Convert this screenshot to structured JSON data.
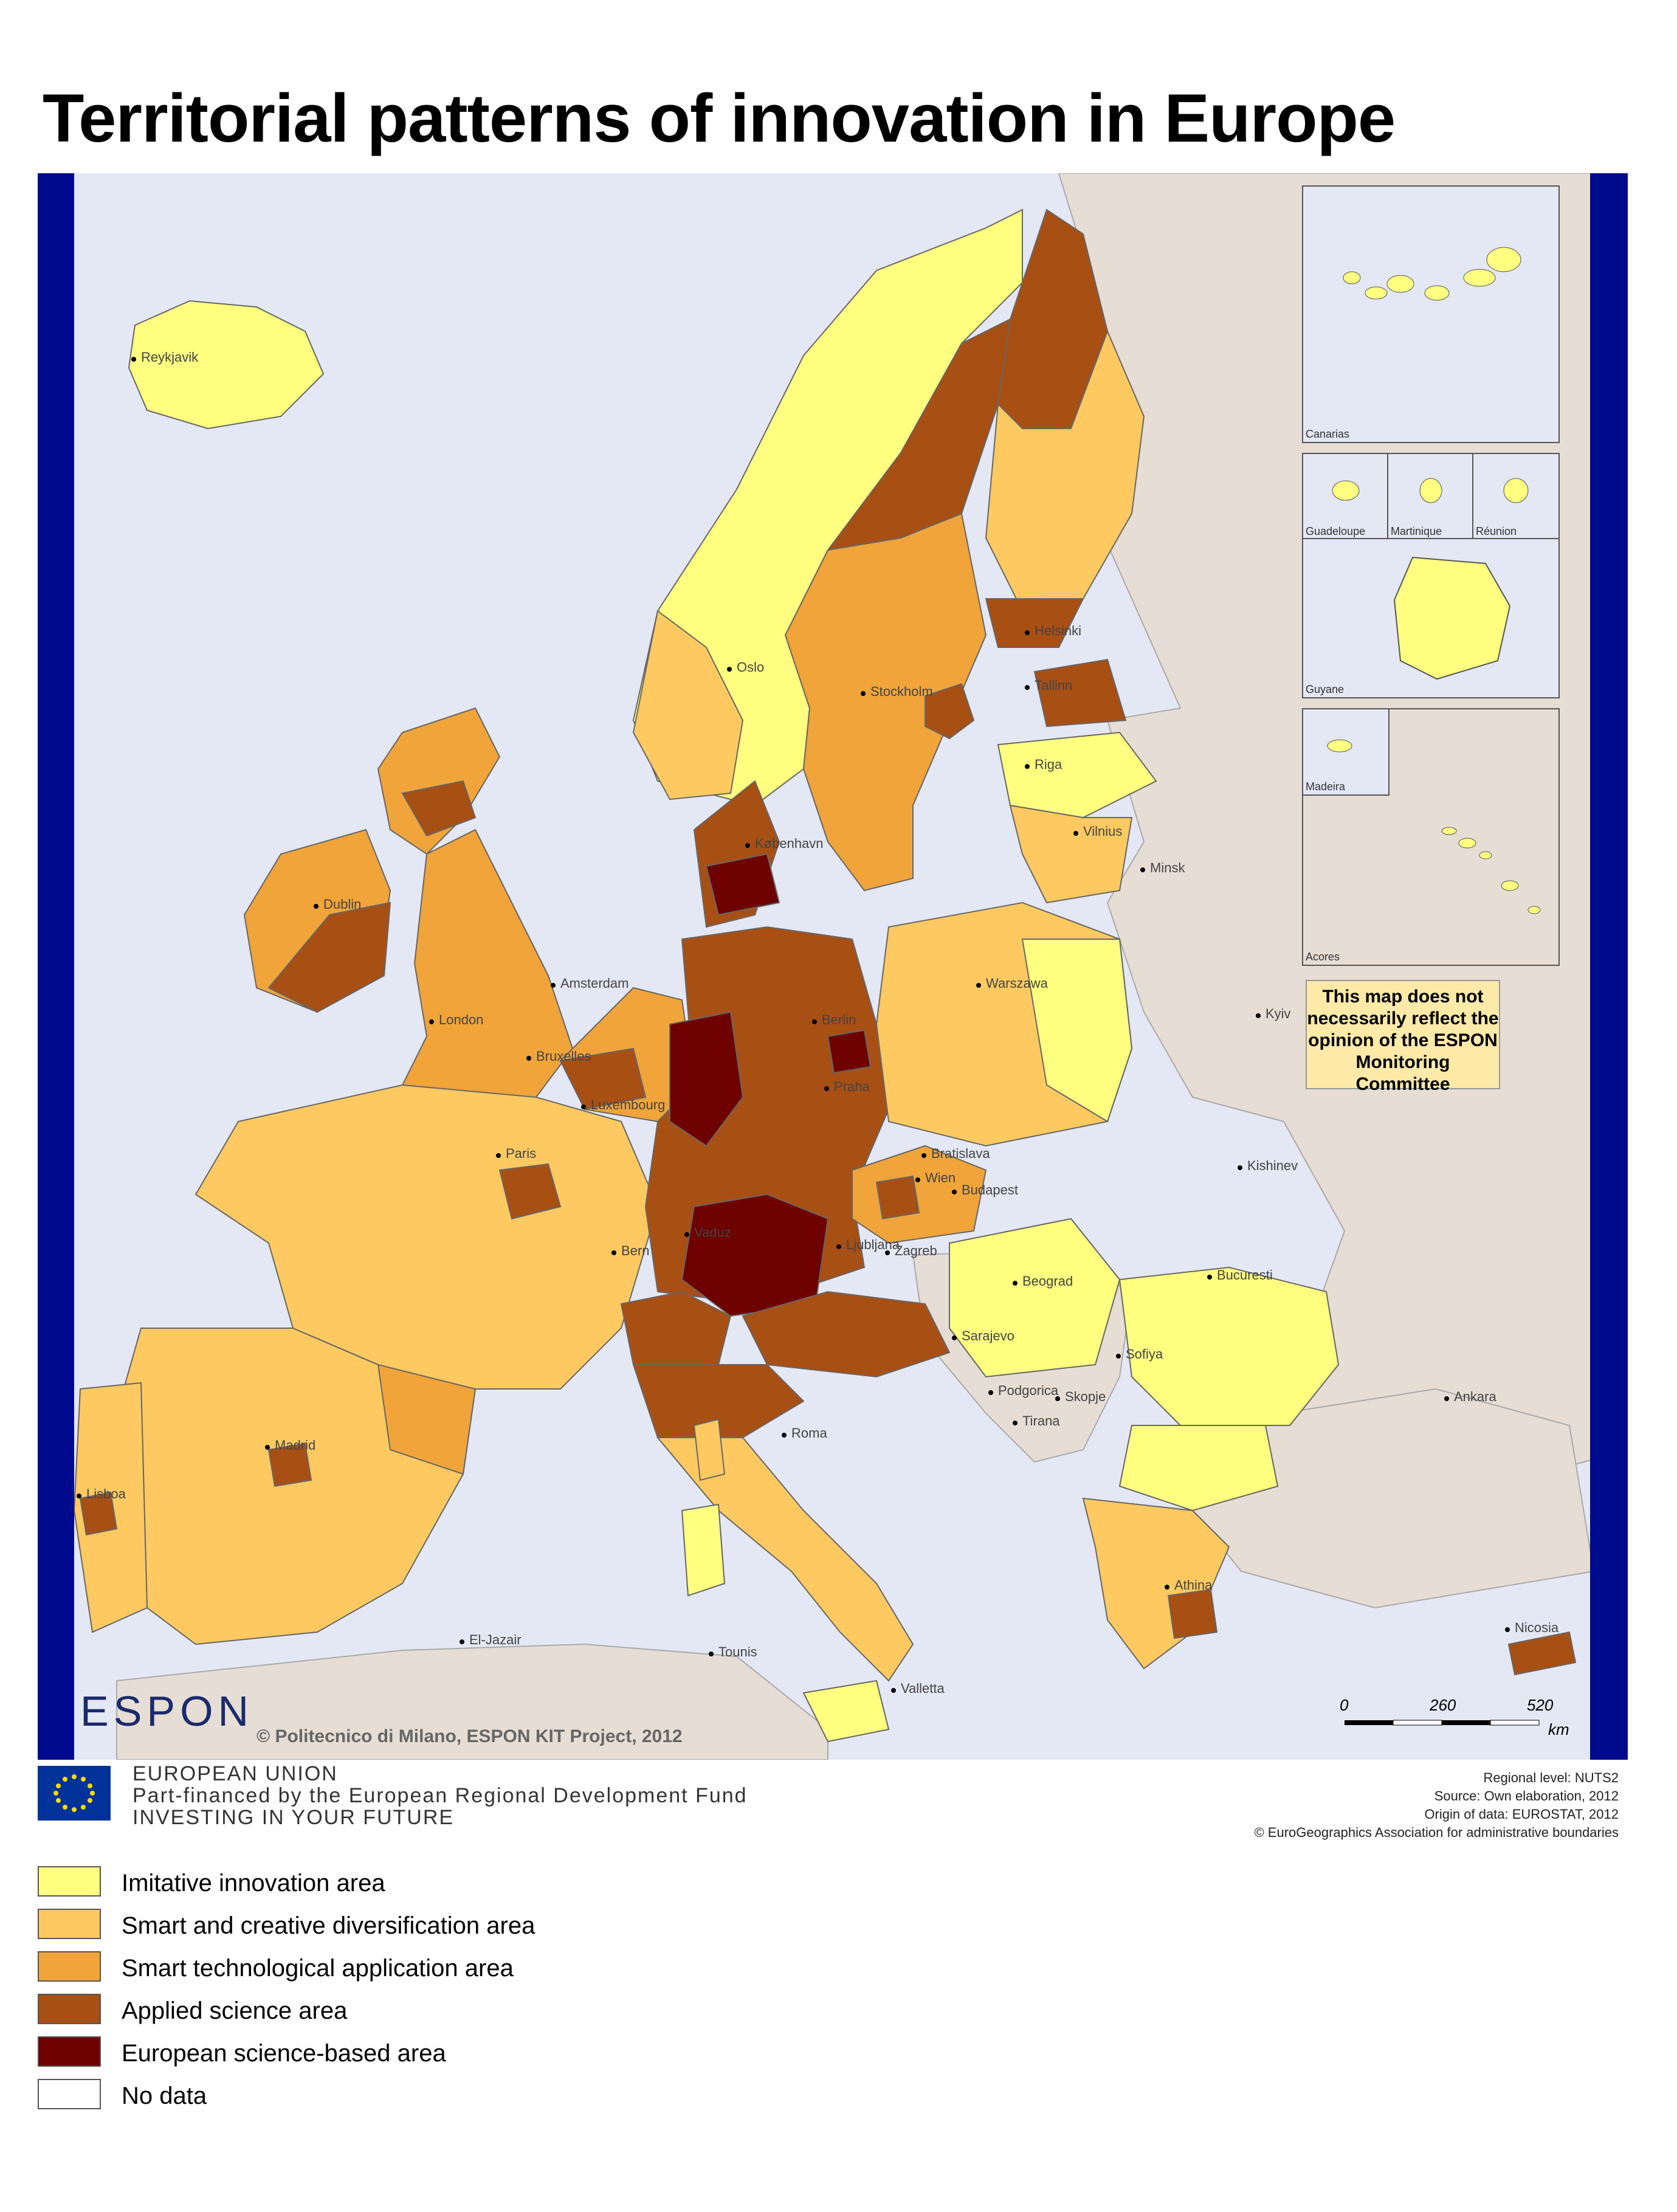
{
  "title": "Territorial patterns of innovation in Europe",
  "colors": {
    "sea": "#e4e8f5",
    "non_eu_land": "#e6ddd5",
    "imitative": "#ffff80",
    "smart_creative": "#fdc960",
    "smart_technological": "#f0a43a",
    "applied_science": "#a84f14",
    "science_based": "#6e0000",
    "no_data": "#ffffff",
    "frame_bar": "#000a8c"
  },
  "cities": [
    {
      "name": "Reykjavik"
    },
    {
      "name": "Oslo"
    },
    {
      "name": "Stockholm"
    },
    {
      "name": "Helsinki"
    },
    {
      "name": "Tallinn"
    },
    {
      "name": "Riga"
    },
    {
      "name": "Vilnius"
    },
    {
      "name": "Minsk"
    },
    {
      "name": "København"
    },
    {
      "name": "Dublin"
    },
    {
      "name": "London"
    },
    {
      "name": "Amsterdam"
    },
    {
      "name": "Berlin"
    },
    {
      "name": "Warszawa"
    },
    {
      "name": "Kyiv"
    },
    {
      "name": "Bruxelles"
    },
    {
      "name": "Luxembourg"
    },
    {
      "name": "Praha"
    },
    {
      "name": "Paris"
    },
    {
      "name": "Wien"
    },
    {
      "name": "Bratislava"
    },
    {
      "name": "Budapest"
    },
    {
      "name": "Kishinev"
    },
    {
      "name": "Bern"
    },
    {
      "name": "Vaduz"
    },
    {
      "name": "Ljubljana"
    },
    {
      "name": "Zagreb"
    },
    {
      "name": "Beograd"
    },
    {
      "name": "Bucuresti"
    },
    {
      "name": "Sarajevo"
    },
    {
      "name": "Sofiya"
    },
    {
      "name": "Podgorica"
    },
    {
      "name": "Skopje"
    },
    {
      "name": "Tirana"
    },
    {
      "name": "Ankara"
    },
    {
      "name": "Roma"
    },
    {
      "name": "Madrid"
    },
    {
      "name": "Lisboa"
    },
    {
      "name": "Athina"
    },
    {
      "name": "Nicosia"
    },
    {
      "name": "El-Jazair"
    },
    {
      "name": "Tounis"
    },
    {
      "name": "Valletta"
    }
  ],
  "insets": [
    {
      "label": "Canarias"
    },
    {
      "label": "Guadeloupe"
    },
    {
      "label": "Martinique"
    },
    {
      "label": "Réunion"
    },
    {
      "label": "Guyane"
    },
    {
      "label": "Madeira"
    },
    {
      "label": "Acores"
    }
  ],
  "disclaimer": "This map does not necessarily reflect the opinion of the ESPON Monitoring Committee",
  "scale": {
    "labels": [
      "0",
      "260",
      "520"
    ],
    "unit": "km"
  },
  "logo": {
    "espon": "ESPON"
  },
  "copyright": "© Politecnico di Milano, ESPON KIT Project, 2012",
  "eu": {
    "line1": "EUROPEAN UNION",
    "line2": "Part-financed by the European Regional Development Fund",
    "line3": "INVESTING IN YOUR FUTURE"
  },
  "source": {
    "line1": "Regional level: NUTS2",
    "line2": "Source: Own elaboration, 2012",
    "line3": "Origin of data: EUROSTAT, 2012",
    "line4": "© EuroGeographics Association for administrative boundaries"
  },
  "legend": [
    {
      "label": "Imitative innovation area",
      "color": "#ffff80"
    },
    {
      "label": "Smart and creative diversification area",
      "color": "#fdc960"
    },
    {
      "label": "Smart technological application area",
      "color": "#f0a43a"
    },
    {
      "label": "Applied science area",
      "color": "#a84f14"
    },
    {
      "label": "European science-based area",
      "color": "#6e0000"
    },
    {
      "label": "No data",
      "color": "#ffffff"
    }
  ]
}
